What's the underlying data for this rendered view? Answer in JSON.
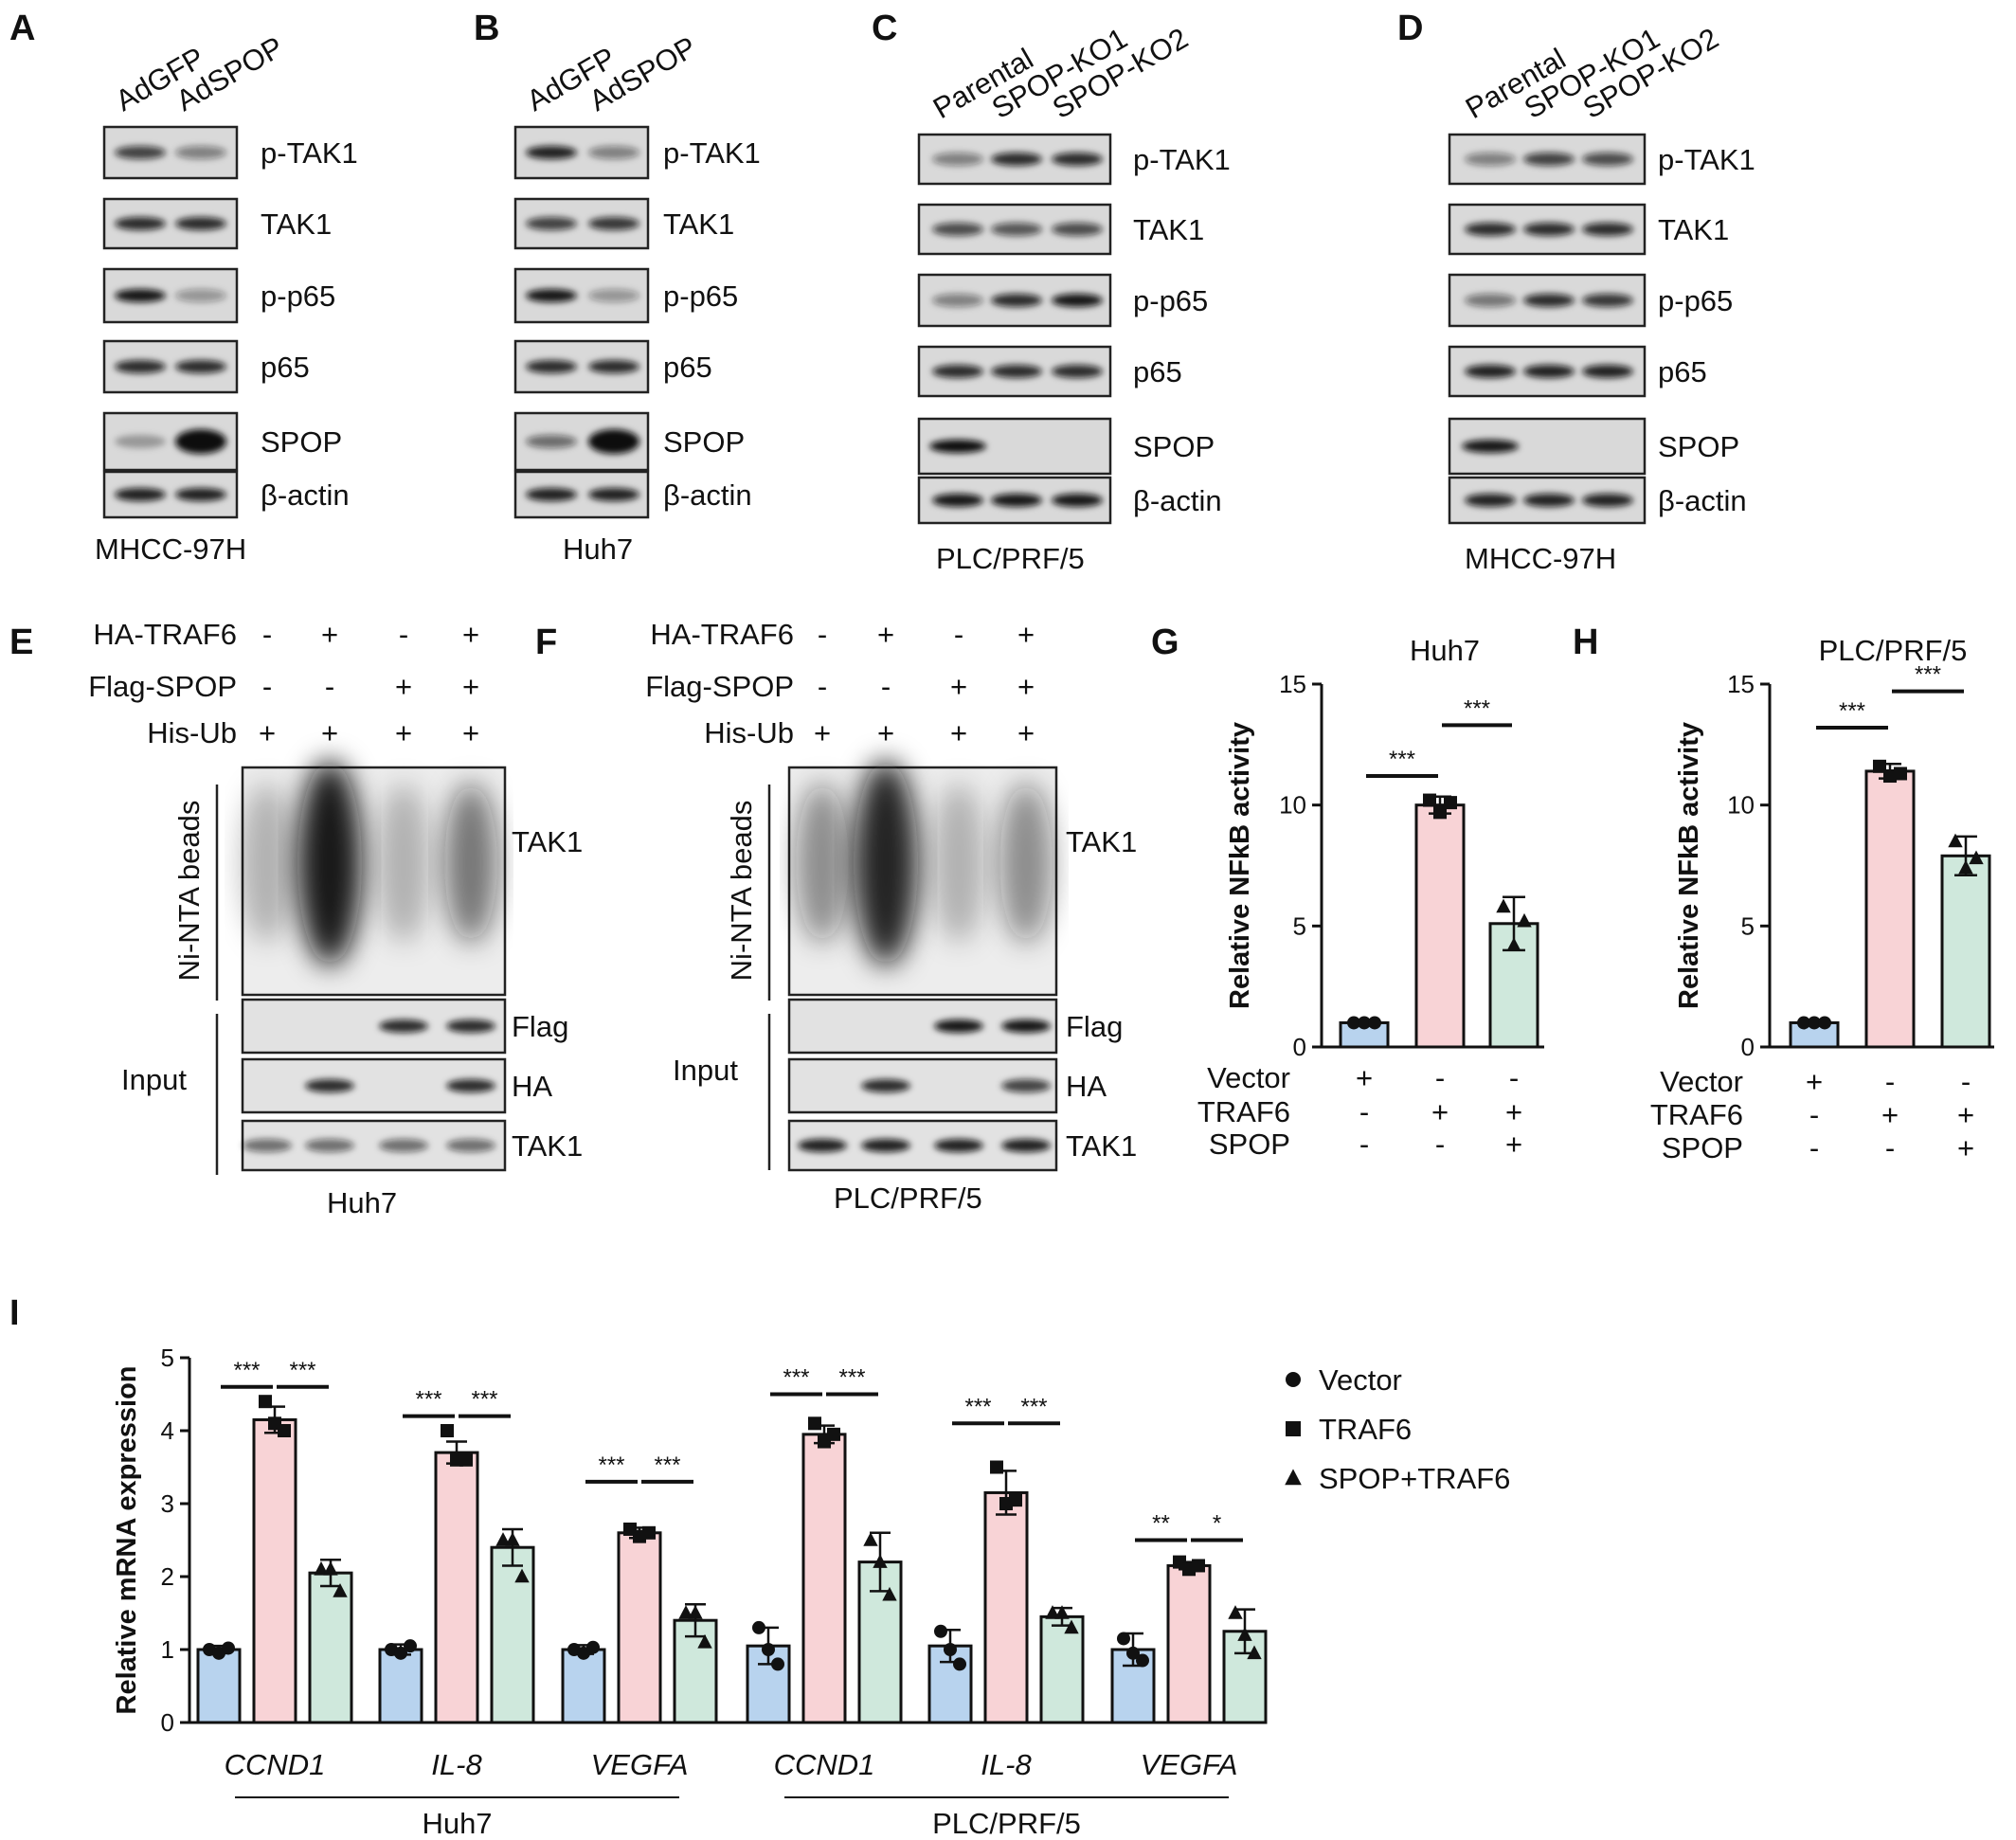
{
  "panels": {
    "A": {
      "letter": "A",
      "lanes": [
        "AdGFP",
        "AdSPOP"
      ],
      "cell_line": "MHCC-97H",
      "blots": [
        "p-TAK1",
        "TAK1",
        "p-p65",
        "p65",
        "SPOP",
        "β-actin"
      ]
    },
    "B": {
      "letter": "B",
      "lanes": [
        "AdGFP",
        "AdSPOP"
      ],
      "cell_line": "Huh7",
      "blots": [
        "p-TAK1",
        "TAK1",
        "p-p65",
        "p65",
        "SPOP",
        "β-actin"
      ]
    },
    "C": {
      "letter": "C",
      "lanes": [
        "Parental",
        "SPOP-KO1",
        "SPOP-KO2"
      ],
      "cell_line": "PLC/PRF/5",
      "blots": [
        "p-TAK1",
        "TAK1",
        "p-p65",
        "p65",
        "SPOP",
        "β-actin"
      ]
    },
    "D": {
      "letter": "D",
      "lanes": [
        "Parental",
        "SPOP-KO1",
        "SPOP-KO2"
      ],
      "cell_line": "MHCC-97H",
      "blots": [
        "p-TAK1",
        "TAK1",
        "p-p65",
        "p65",
        "SPOP",
        "β-actin"
      ]
    },
    "E": {
      "letter": "E",
      "cell_line": "Huh7",
      "conditions": [
        {
          "name": "HA-TRAF6",
          "signs": [
            "-",
            "+",
            "-",
            "+"
          ]
        },
        {
          "name": "Flag-SPOP",
          "signs": [
            "-",
            "-",
            "+",
            "+"
          ]
        },
        {
          "name": "His-Ub",
          "signs": [
            "+",
            "+",
            "+",
            "+"
          ]
        }
      ],
      "pulldown_label": "Ni-NTA beads",
      "pulldown_blot": "TAK1",
      "input_label": "Input",
      "input_blots": [
        "Flag",
        "HA",
        "TAK1"
      ]
    },
    "F": {
      "letter": "F",
      "cell_line": "PLC/PRF/5",
      "conditions": [
        {
          "name": "HA-TRAF6",
          "signs": [
            "-",
            "+",
            "-",
            "+"
          ]
        },
        {
          "name": "Flag-SPOP",
          "signs": [
            "-",
            "-",
            "+",
            "+"
          ]
        },
        {
          "name": "His-Ub",
          "signs": [
            "+",
            "+",
            "+",
            "+"
          ]
        }
      ],
      "pulldown_label": "Ni-NTA beads",
      "pulldown_blot": "TAK1",
      "input_label": "Input",
      "input_blots": [
        "Flag",
        "HA",
        "TAK1"
      ]
    }
  },
  "colors": {
    "vector": "#b8d3ee",
    "traf6": "#f8d3d6",
    "spop_traf6": "#cfe8dc",
    "axis": "#111111"
  },
  "chart_data": [
    {
      "id": "G",
      "letter": "G",
      "type": "bar",
      "title": "Huh7",
      "ylabel": "Relative NFkB activity",
      "ylim": [
        0,
        15
      ],
      "yticks": [
        0,
        5,
        10,
        15
      ],
      "values": [
        1.0,
        10.0,
        5.1
      ],
      "errors": [
        0.05,
        0.35,
        1.1
      ],
      "points": [
        [
          1.0,
          1.0,
          1.0
        ],
        [
          10.2,
          9.7,
          10.1
        ],
        [
          5.8,
          4.2,
          5.2
        ]
      ],
      "markers": [
        "circle",
        "square",
        "triangle"
      ],
      "color_keys": [
        "vector",
        "traf6",
        "spop_traf6"
      ],
      "condition_rows": [
        {
          "name": "Vector",
          "signs": [
            "+",
            "-",
            "-"
          ]
        },
        {
          "name": "TRAF6",
          "signs": [
            "-",
            "+",
            "+"
          ]
        },
        {
          "name": "SPOP",
          "signs": [
            "-",
            "-",
            "+"
          ]
        }
      ],
      "significance": [
        {
          "from": 0,
          "to": 1,
          "label": "***",
          "y": 11.2
        },
        {
          "from": 1,
          "to": 2,
          "label": "***",
          "y": 13.3
        }
      ]
    },
    {
      "id": "H",
      "letter": "H",
      "type": "bar",
      "title": "PLC/PRF/5",
      "ylabel": "Relative NFkB activity",
      "ylim": [
        0,
        15
      ],
      "yticks": [
        0,
        5,
        10,
        15
      ],
      "values": [
        1.0,
        11.4,
        7.9
      ],
      "errors": [
        0.05,
        0.3,
        0.8
      ],
      "points": [
        [
          1.0,
          1.0,
          1.0
        ],
        [
          11.6,
          11.2,
          11.3
        ],
        [
          8.5,
          7.4,
          7.8
        ]
      ],
      "markers": [
        "circle",
        "square",
        "triangle"
      ],
      "color_keys": [
        "vector",
        "traf6",
        "spop_traf6"
      ],
      "condition_rows": [
        {
          "name": "Vector",
          "signs": [
            "+",
            "-",
            "-"
          ]
        },
        {
          "name": "TRAF6",
          "signs": [
            "-",
            "+",
            "+"
          ]
        },
        {
          "name": "SPOP",
          "signs": [
            "-",
            "-",
            "+"
          ]
        }
      ],
      "significance": [
        {
          "from": 0,
          "to": 1,
          "label": "***",
          "y": 13.2
        },
        {
          "from": 1,
          "to": 2,
          "label": "***",
          "y": 14.7
        }
      ]
    },
    {
      "id": "I",
      "letter": "I",
      "type": "bar",
      "ylabel": "Relative mRNA expression",
      "ylim": [
        0,
        5
      ],
      "yticks": [
        0,
        1,
        2,
        3,
        4,
        5
      ],
      "categories": [
        "CCND1",
        "IL-8",
        "VEGFA",
        "CCND1",
        "IL-8",
        "VEGFA"
      ],
      "groups": [
        {
          "label": "Huh7",
          "from": 0,
          "to": 2
        },
        {
          "label": "PLC/PRF/5",
          "from": 3,
          "to": 5
        }
      ],
      "series": [
        {
          "name": "Vector",
          "marker": "circle",
          "color_key": "vector",
          "values": [
            1.0,
            1.0,
            1.0,
            1.05,
            1.05,
            1.0
          ],
          "errors": [
            0.05,
            0.07,
            0.06,
            0.25,
            0.22,
            0.22
          ],
          "points": [
            [
              1.0,
              0.95,
              1.02
            ],
            [
              1.0,
              0.95,
              1.05
            ],
            [
              1.0,
              0.95,
              1.03
            ],
            [
              1.3,
              1.0,
              0.8
            ],
            [
              1.25,
              1.0,
              0.8
            ],
            [
              1.15,
              0.95,
              0.85
            ]
          ]
        },
        {
          "name": "TRAF6",
          "marker": "square",
          "color_key": "traf6",
          "values": [
            4.15,
            3.7,
            2.6,
            3.95,
            3.15,
            2.15
          ],
          "errors": [
            0.18,
            0.15,
            0.07,
            0.12,
            0.3,
            0.05
          ],
          "points": [
            [
              4.4,
              4.1,
              4.0
            ],
            [
              4.0,
              3.6,
              3.6
            ],
            [
              2.65,
              2.55,
              2.6
            ],
            [
              4.1,
              3.85,
              3.95
            ],
            [
              3.5,
              3.0,
              3.05
            ],
            [
              2.2,
              2.1,
              2.15
            ]
          ]
        },
        {
          "name": "SPOP+TRAF6",
          "marker": "triangle",
          "color_key": "spop_traf6",
          "values": [
            2.05,
            2.4,
            1.4,
            2.2,
            1.45,
            1.25
          ],
          "errors": [
            0.18,
            0.25,
            0.22,
            0.4,
            0.12,
            0.3
          ],
          "points": [
            [
              2.1,
              2.1,
              1.8
            ],
            [
              2.5,
              2.5,
              2.0
            ],
            [
              1.5,
              1.5,
              1.1
            ],
            [
              2.5,
              2.2,
              1.75
            ],
            [
              1.5,
              1.5,
              1.3
            ],
            [
              1.5,
              1.2,
              0.95
            ]
          ]
        }
      ],
      "significance": [
        {
          "cat": 0,
          "from": 0,
          "to": 1,
          "label": "***",
          "y": 4.6
        },
        {
          "cat": 0,
          "from": 1,
          "to": 2,
          "label": "***",
          "y": 4.6
        },
        {
          "cat": 1,
          "from": 0,
          "to": 1,
          "label": "***",
          "y": 4.2
        },
        {
          "cat": 1,
          "from": 1,
          "to": 2,
          "label": "***",
          "y": 4.2
        },
        {
          "cat": 2,
          "from": 0,
          "to": 1,
          "label": "***",
          "y": 3.3
        },
        {
          "cat": 2,
          "from": 1,
          "to": 2,
          "label": "***",
          "y": 3.3
        },
        {
          "cat": 3,
          "from": 0,
          "to": 1,
          "label": "***",
          "y": 4.5
        },
        {
          "cat": 3,
          "from": 1,
          "to": 2,
          "label": "***",
          "y": 4.5
        },
        {
          "cat": 4,
          "from": 0,
          "to": 1,
          "label": "***",
          "y": 4.1
        },
        {
          "cat": 4,
          "from": 1,
          "to": 2,
          "label": "***",
          "y": 4.1
        },
        {
          "cat": 5,
          "from": 0,
          "to": 1,
          "label": "**",
          "y": 2.5
        },
        {
          "cat": 5,
          "from": 1,
          "to": 2,
          "label": "*",
          "y": 2.5
        }
      ],
      "legend_position": "right"
    }
  ]
}
